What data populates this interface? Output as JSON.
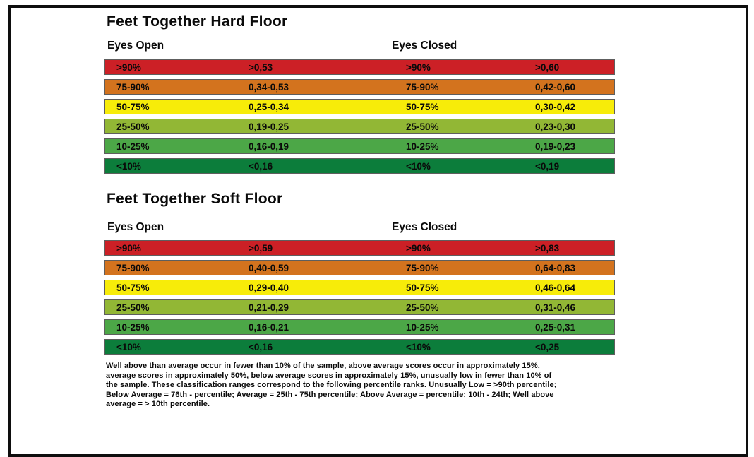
{
  "page": {
    "frame_color": "#0e0e0e",
    "background": "#ffffff",
    "text_color": "#0a0a0a"
  },
  "tables": [
    {
      "title": "Feet Together Hard Floor",
      "headers": {
        "eyes_open": "Eyes Open",
        "eyes_closed": "Eyes Closed"
      },
      "rows": [
        {
          "p_open": ">90%",
          "s_open": ">0,53",
          "p_closed": ">90%",
          "s_closed": ">0,60",
          "color": "#cc2026",
          "label": "well-above-average"
        },
        {
          "p_open": "75-90%",
          "s_open": "0,34-0,53",
          "p_closed": "75-90%",
          "s_closed": "0,42-0,60",
          "color": "#d3731e",
          "label": "above-average"
        },
        {
          "p_open": "50-75%",
          "s_open": "0,25-0,34",
          "p_closed": "50-75%",
          "s_closed": "0,30-0,42",
          "color": "#f7ec09",
          "label": "average"
        },
        {
          "p_open": "25-50%",
          "s_open": "0,19-0,25",
          "p_closed": "25-50%",
          "s_closed": "0,23-0,30",
          "color": "#92b735",
          "label": "below-average"
        },
        {
          "p_open": "10-25%",
          "s_open": "0,16-0,19",
          "p_closed": "10-25%",
          "s_closed": "0,19-0,23",
          "color": "#4ca747",
          "label": "low"
        },
        {
          "p_open": "<10%",
          "s_open": "<0,16",
          "p_closed": "<10%",
          "s_closed": "<0,19",
          "color": "#0c7d3b",
          "label": "unusually-low"
        }
      ]
    },
    {
      "title": "Feet Together Soft Floor",
      "headers": {
        "eyes_open": "Eyes Open",
        "eyes_closed": "Eyes Closed"
      },
      "rows": [
        {
          "p_open": ">90%",
          "s_open": ">0,59",
          "p_closed": ">90%",
          "s_closed": ">0,83",
          "color": "#cc2026",
          "label": "well-above-average"
        },
        {
          "p_open": "75-90%",
          "s_open": "0,40-0,59",
          "p_closed": "75-90%",
          "s_closed": "0,64-0,83",
          "color": "#d3731e",
          "label": "above-average"
        },
        {
          "p_open": "50-75%",
          "s_open": "0,29-0,40",
          "p_closed": "50-75%",
          "s_closed": "0,46-0,64",
          "color": "#f7ec09",
          "label": "average"
        },
        {
          "p_open": "25-50%",
          "s_open": "0,21-0,29",
          "p_closed": "25-50%",
          "s_closed": "0,31-0,46",
          "color": "#92b735",
          "label": "below-average"
        },
        {
          "p_open": "10-25%",
          "s_open": "0,16-0,21",
          "p_closed": "10-25%",
          "s_closed": "0,25-0,31",
          "color": "#4ca747",
          "label": "low"
        },
        {
          "p_open": "<10%",
          "s_open": "<0,16",
          "p_closed": "<10%",
          "s_closed": "<0,25",
          "color": "#0c7d3b",
          "label": "unusually-low"
        }
      ]
    }
  ],
  "footnote": {
    "lines": [
      "Well above than average occur in fewer than 10% of the sample, above average scores occur in approximately 15%,",
      "average scores in approximately 50%, below average scores in approximately 15%, unusually low in fewer than 10% of",
      "the sample. These classification ranges correspond to the following percentile ranks. Unusually Low = >90th percentile;",
      "Below Average = 76th - percentile; Average = 25th - 75th percentile; Above Average = percentile; 10th - 24th; Well above",
      "average = > 10th percentile."
    ]
  }
}
